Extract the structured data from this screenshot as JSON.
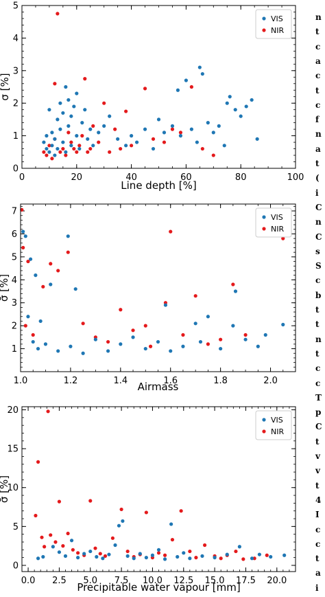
{
  "chart_data": [
    {
      "type": "scatter",
      "xlabel": "Line depth [%]",
      "ylabel": "σ [%]",
      "xlim": [
        0,
        100
      ],
      "ylim": [
        0,
        5
      ],
      "xticks": [
        "0",
        "20",
        "40",
        "60",
        "80",
        "100"
      ],
      "yticks": [
        "0",
        "1",
        "2",
        "3",
        "4",
        "5"
      ],
      "legend_position": "top-right",
      "series": [
        {
          "name": "VIS",
          "color": "#1f77b4",
          "points": [
            [
              8,
              0.8
            ],
            [
              9,
              0.6
            ],
            [
              9,
              1.0
            ],
            [
              10,
              0.5
            ],
            [
              10,
              1.8
            ],
            [
              11,
              0.7
            ],
            [
              11,
              1.1
            ],
            [
              12,
              0.4
            ],
            [
              12,
              0.9
            ],
            [
              13,
              1.5
            ],
            [
              13,
              0.6
            ],
            [
              14,
              1.2
            ],
            [
              14,
              2.0
            ],
            [
              15,
              0.8
            ],
            [
              15,
              1.7
            ],
            [
              16,
              2.5
            ],
            [
              16,
              0.5
            ],
            [
              17,
              1.3
            ],
            [
              17,
              2.1
            ],
            [
              18,
              1.6
            ],
            [
              18,
              0.7
            ],
            [
              19,
              1.9
            ],
            [
              20,
              1.0
            ],
            [
              20,
              2.3
            ],
            [
              21,
              0.6
            ],
            [
              22,
              1.4
            ],
            [
              23,
              1.8
            ],
            [
              24,
              0.9
            ],
            [
              25,
              1.2
            ],
            [
              26,
              0.7
            ],
            [
              28,
              1.1
            ],
            [
              30,
              1.3
            ],
            [
              32,
              1.6
            ],
            [
              35,
              0.9
            ],
            [
              38,
              0.7
            ],
            [
              40,
              1.0
            ],
            [
              42,
              0.8
            ],
            [
              45,
              1.2
            ],
            [
              48,
              0.6
            ],
            [
              50,
              1.5
            ],
            [
              52,
              1.1
            ],
            [
              55,
              1.3
            ],
            [
              57,
              2.4
            ],
            [
              58,
              1.0
            ],
            [
              60,
              2.7
            ],
            [
              62,
              1.2
            ],
            [
              64,
              0.8
            ],
            [
              65,
              3.1
            ],
            [
              66,
              2.9
            ],
            [
              68,
              1.4
            ],
            [
              70,
              1.1
            ],
            [
              72,
              1.3
            ],
            [
              74,
              0.7
            ],
            [
              75,
              2.0
            ],
            [
              76,
              2.2
            ],
            [
              78,
              1.8
            ],
            [
              80,
              1.6
            ],
            [
              82,
              1.9
            ],
            [
              84,
              2.1
            ],
            [
              86,
              0.9
            ]
          ]
        },
        {
          "name": "NIR",
          "color": "#e41a1c",
          "points": [
            [
              8,
              0.5
            ],
            [
              9,
              0.4
            ],
            [
              10,
              0.7
            ],
            [
              11,
              0.3
            ],
            [
              12,
              2.6
            ],
            [
              12,
              0.9
            ],
            [
              13,
              4.75
            ],
            [
              14,
              0.5
            ],
            [
              15,
              0.6
            ],
            [
              16,
              0.4
            ],
            [
              17,
              1.1
            ],
            [
              18,
              0.8
            ],
            [
              19,
              0.6
            ],
            [
              20,
              0.5
            ],
            [
              21,
              0.7
            ],
            [
              22,
              1.0
            ],
            [
              23,
              2.75
            ],
            [
              24,
              0.5
            ],
            [
              25,
              0.6
            ],
            [
              26,
              1.3
            ],
            [
              28,
              0.8
            ],
            [
              30,
              2.0
            ],
            [
              32,
              0.5
            ],
            [
              34,
              1.2
            ],
            [
              36,
              0.6
            ],
            [
              38,
              1.75
            ],
            [
              40,
              0.7
            ],
            [
              45,
              2.45
            ],
            [
              48,
              0.9
            ],
            [
              52,
              0.8
            ],
            [
              55,
              1.2
            ],
            [
              58,
              1.1
            ],
            [
              62,
              2.5
            ],
            [
              66,
              0.6
            ],
            [
              70,
              0.4
            ]
          ]
        }
      ]
    },
    {
      "type": "scatter",
      "xlabel": "Airmass",
      "ylabel": "σ̄ [%]",
      "xlim": [
        1.0,
        2.1
      ],
      "ylim": [
        0,
        7.3
      ],
      "xticks": [
        "1.0",
        "1.2",
        "1.4",
        "1.6",
        "1.8",
        "2.0"
      ],
      "yticks": [
        "1",
        "2",
        "3",
        "4",
        "5",
        "6",
        "7"
      ],
      "legend_position": "top-right",
      "series": [
        {
          "name": "VIS",
          "color": "#1f77b4",
          "points": [
            [
              1.01,
              6.1
            ],
            [
              1.02,
              5.9
            ],
            [
              1.03,
              2.4
            ],
            [
              1.04,
              4.9
            ],
            [
              1.06,
              4.2
            ],
            [
              1.08,
              2.2
            ],
            [
              1.12,
              3.8
            ],
            [
              1.19,
              5.9
            ],
            [
              1.22,
              3.6
            ],
            [
              1.05,
              1.3
            ],
            [
              1.07,
              1.0
            ],
            [
              1.1,
              1.2
            ],
            [
              1.15,
              0.9
            ],
            [
              1.2,
              1.1
            ],
            [
              1.25,
              0.8
            ],
            [
              1.3,
              1.4
            ],
            [
              1.35,
              0.9
            ],
            [
              1.4,
              1.2
            ],
            [
              1.45,
              1.5
            ],
            [
              1.5,
              1.0
            ],
            [
              1.55,
              1.3
            ],
            [
              1.58,
              2.9
            ],
            [
              1.6,
              0.9
            ],
            [
              1.65,
              1.1
            ],
            [
              1.7,
              2.1
            ],
            [
              1.72,
              1.3
            ],
            [
              1.75,
              2.4
            ],
            [
              1.8,
              1.0
            ],
            [
              1.85,
              2.0
            ],
            [
              1.86,
              3.5
            ],
            [
              1.9,
              1.4
            ],
            [
              1.95,
              1.1
            ],
            [
              1.98,
              1.6
            ],
            [
              2.05,
              2.05
            ]
          ]
        },
        {
          "name": "NIR",
          "color": "#e41a1c",
          "points": [
            [
              1.005,
              7.05
            ],
            [
              1.01,
              5.4
            ],
            [
              1.02,
              2.0
            ],
            [
              1.03,
              4.8
            ],
            [
              1.05,
              1.6
            ],
            [
              1.09,
              3.7
            ],
            [
              1.12,
              4.7
            ],
            [
              1.15,
              4.4
            ],
            [
              1.19,
              5.2
            ],
            [
              1.25,
              2.1
            ],
            [
              1.3,
              1.5
            ],
            [
              1.35,
              1.3
            ],
            [
              1.4,
              2.7
            ],
            [
              1.45,
              1.8
            ],
            [
              1.5,
              2.0
            ],
            [
              1.52,
              1.1
            ],
            [
              1.58,
              3.0
            ],
            [
              1.6,
              6.1
            ],
            [
              1.65,
              1.6
            ],
            [
              1.7,
              3.3
            ],
            [
              1.75,
              1.2
            ],
            [
              1.8,
              1.4
            ],
            [
              1.85,
              3.8
            ],
            [
              1.9,
              1.6
            ],
            [
              2.05,
              5.8
            ]
          ]
        }
      ]
    },
    {
      "type": "scatter",
      "xlabel": "Precipitable water vapour [mm]",
      "ylabel": "σ̄ [%]",
      "xlim": [
        -0.5,
        21.5
      ],
      "ylim": [
        -0.8,
        20.4
      ],
      "xticks": [
        "0.0",
        "2.5",
        "5.0",
        "7.5",
        "10.0",
        "12.5",
        "15.0",
        "17.5",
        "20.0"
      ],
      "yticks": [
        "0",
        "5",
        "10",
        "15",
        "20"
      ],
      "legend_position": "top-right",
      "series": [
        {
          "name": "VIS",
          "color": "#1f77b4",
          "points": [
            [
              0.8,
              0.9
            ],
            [
              1.2,
              1.1
            ],
            [
              2.0,
              2.4
            ],
            [
              2.5,
              1.7
            ],
            [
              3.0,
              1.2
            ],
            [
              3.5,
              3.2
            ],
            [
              4.0,
              1.0
            ],
            [
              4.5,
              1.5
            ],
            [
              5.0,
              1.8
            ],
            [
              5.5,
              1.1
            ],
            [
              6.0,
              0.9
            ],
            [
              6.5,
              1.4
            ],
            [
              7.0,
              2.6
            ],
            [
              7.3,
              5.1
            ],
            [
              7.6,
              5.7
            ],
            [
              8.0,
              1.2
            ],
            [
              8.5,
              0.9
            ],
            [
              9.0,
              1.5
            ],
            [
              9.5,
              1.0
            ],
            [
              10.0,
              1.3
            ],
            [
              10.5,
              2.0
            ],
            [
              11.0,
              0.8
            ],
            [
              11.5,
              5.3
            ],
            [
              12.0,
              1.1
            ],
            [
              12.5,
              1.6
            ],
            [
              13.0,
              0.9
            ],
            [
              14.0,
              1.2
            ],
            [
              15.0,
              1.0
            ],
            [
              16.0,
              1.4
            ],
            [
              17.0,
              2.4
            ],
            [
              18.0,
              0.9
            ],
            [
              18.6,
              1.4
            ],
            [
              19.5,
              1.1
            ],
            [
              20.6,
              1.3
            ]
          ]
        },
        {
          "name": "NIR",
          "color": "#e41a1c",
          "points": [
            [
              0.6,
              6.4
            ],
            [
              0.8,
              13.3
            ],
            [
              1.1,
              3.6
            ],
            [
              1.3,
              2.4
            ],
            [
              1.6,
              19.8
            ],
            [
              1.8,
              3.9
            ],
            [
              2.2,
              3.0
            ],
            [
              2.5,
              8.2
            ],
            [
              2.8,
              2.5
            ],
            [
              3.2,
              4.1
            ],
            [
              3.6,
              2.0
            ],
            [
              4.0,
              1.6
            ],
            [
              4.5,
              1.3
            ],
            [
              5.0,
              8.3
            ],
            [
              5.4,
              2.2
            ],
            [
              5.8,
              1.5
            ],
            [
              6.2,
              1.2
            ],
            [
              6.8,
              3.5
            ],
            [
              7.5,
              7.2
            ],
            [
              8.0,
              1.8
            ],
            [
              8.5,
              1.1
            ],
            [
              9.0,
              1.4
            ],
            [
              9.5,
              6.8
            ],
            [
              10.0,
              1.0
            ],
            [
              10.5,
              1.6
            ],
            [
              11.0,
              1.3
            ],
            [
              11.6,
              3.3
            ],
            [
              12.3,
              7.0
            ],
            [
              13.0,
              1.8
            ],
            [
              13.5,
              1.0
            ],
            [
              14.2,
              2.6
            ],
            [
              15.0,
              1.2
            ],
            [
              15.5,
              0.9
            ],
            [
              16.0,
              1.3
            ],
            [
              16.7,
              1.8
            ],
            [
              17.3,
              0.8
            ],
            [
              18.2,
              0.9
            ],
            [
              19.2,
              1.3
            ]
          ]
        }
      ]
    }
  ],
  "margin_text": [
    "n",
    "t",
    "c",
    "a",
    "c",
    "t",
    "c",
    "f",
    "n",
    "a",
    "t",
    "(",
    "i",
    "C",
    "n",
    "C",
    "s",
    "S",
    "c",
    "b",
    "t",
    "t",
    "n",
    "t",
    "c",
    "c",
    "T",
    "p",
    "C",
    "t",
    "v",
    "v",
    "t",
    "4",
    "I",
    "c",
    "c",
    "t",
    "a",
    "i"
  ]
}
